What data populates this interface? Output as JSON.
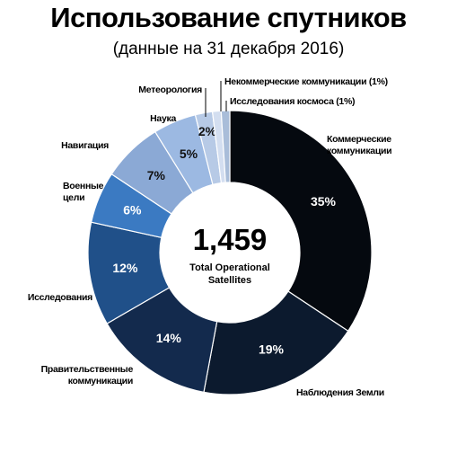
{
  "chart_data": {
    "type": "pie",
    "title": "Использование спутников",
    "subtitle": "(данные на 31 декабря 2016)",
    "center_label": "1,459",
    "center_sublabel": "Total Operational Satellites",
    "categories": [
      "Коммерческие коммуникации",
      "Наблюдения Земли",
      "Правительственные коммуникации",
      "Исследования",
      "Военные цели",
      "Навигация",
      "Наука",
      "Метеорология",
      "Некоммерческие коммуникации (1%)",
      "Исследования космоса (1%)"
    ],
    "values": [
      35,
      19,
      14,
      12,
      6,
      7,
      5,
      2,
      1,
      1
    ],
    "value_labels": [
      "35%",
      "19%",
      "14%",
      "12%",
      "6%",
      "7%",
      "5%",
      "2%",
      null,
      null
    ],
    "colors": [
      "#05090f",
      "#0c1a2e",
      "#132a4d",
      "#205089",
      "#3b7ac2",
      "#8ba9d5",
      "#9cb9e2",
      "#b7cae6",
      "#d3def0",
      "#a9bdd9"
    ]
  }
}
